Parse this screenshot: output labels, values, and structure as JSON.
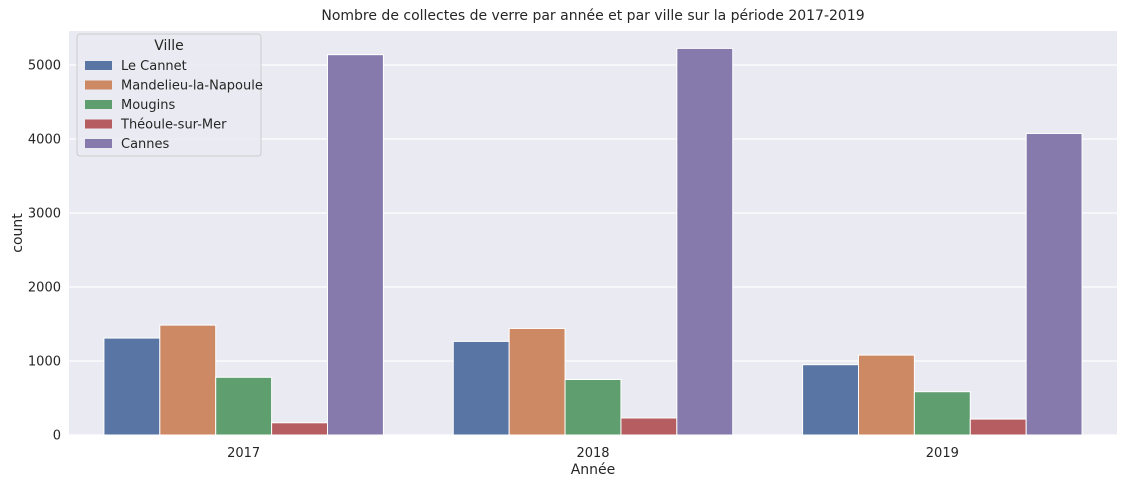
{
  "chart_data": {
    "type": "bar",
    "title": "Nombre de collectes de verre par année et par ville sur la période 2017-2019",
    "xlabel": "Année",
    "ylabel": "count",
    "categories": [
      "2017",
      "2018",
      "2019"
    ],
    "ylim": [
      0,
      5460
    ],
    "yticks": [
      0,
      1000,
      2000,
      3000,
      4000,
      5000
    ],
    "grid": true,
    "legend": {
      "title": "Ville",
      "position": "top-left"
    },
    "series": [
      {
        "name": "Le Cannet",
        "color": "#5875a4",
        "values": [
          1310,
          1265,
          950
        ]
      },
      {
        "name": "Mandelieu-la-Napoule",
        "color": "#cc8963",
        "values": [
          1485,
          1440,
          1080
        ]
      },
      {
        "name": "Mougins",
        "color": "#5f9e6e",
        "values": [
          780,
          750,
          585
        ]
      },
      {
        "name": "Théoule-sur-Mer",
        "color": "#b55d60",
        "values": [
          165,
          230,
          215
        ]
      },
      {
        "name": "Cannes",
        "color": "#857aab",
        "values": [
          5140,
          5225,
          4075
        ]
      }
    ],
    "plot_background": "#eaeaf2"
  }
}
